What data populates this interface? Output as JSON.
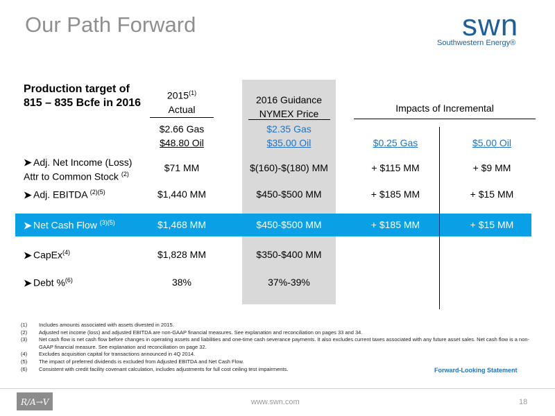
{
  "title": "Our Path Forward",
  "logo": {
    "word": "swn",
    "sub": "Southwestern Energy®"
  },
  "lead": "Production target of 815 – 835 Bcfe in 2016",
  "headers": {
    "actual_year": "2015",
    "actual_sup": "(1)",
    "actual_label": "Actual",
    "guidance_l1": "2016 Guidance",
    "guidance_l2": "NYMEX Price",
    "impacts": "Impacts of Incremental"
  },
  "prices": {
    "actual_gas": "$2.66 Gas",
    "actual_oil": "$48.80 Oil",
    "guidance_gas": "$2.35 Gas",
    "guidance_oil": "$35.00 Oil",
    "inc_gas": "$0.25 Gas",
    "inc_oil": "$5.00 Oil"
  },
  "rows": [
    {
      "label1": "Adj. Net Income (Loss)",
      "label2": "Attr to Common Stock",
      "sup": "(2)",
      "actual": "$71 MM",
      "guidance": "$(160)-$(180) MM",
      "gas": "+ $115 MM",
      "oil": "+ $9 MM"
    },
    {
      "label1": "Adj. EBITDA",
      "sup": "(2)(5)",
      "actual": "$1,440 MM",
      "guidance": "$450-$500 MM",
      "gas": "+ $185 MM",
      "oil": "+ $15 MM"
    },
    {
      "label1": "Net Cash Flow",
      "sup": "(3)(5)",
      "actual": "$1,468 MM",
      "guidance": "$450-$500 MM",
      "gas": "+ $185 MM",
      "oil": "+ $15 MM"
    },
    {
      "label1": "CapEx",
      "sup": "(4)",
      "actual": "$1,828 MM",
      "guidance": "$350-$400 MM",
      "gas": "",
      "oil": ""
    },
    {
      "label1": "Debt %",
      "sup": "(6)",
      "actual": "38%",
      "guidance": "37%-39%",
      "gas": "",
      "oil": ""
    }
  ],
  "footnotes": [
    {
      "n": "(1)",
      "text": "Includes amounts associated with assets divested in 2015."
    },
    {
      "n": "(2)",
      "text": "Adjusted net income (loss) and adjusted EBITDA are non-GAAP financial measures. See explanation and reconciliation on pages 33 and 34."
    },
    {
      "n": "(3)",
      "text": "Net cash flow is net cash flow before changes in operating assets and liabilities and one-time cash severance payments. It also excludes current taxes associated with any future asset sales. Net cash flow is a non-GAAP financial measure. See explanation and reconciliation on page 32."
    },
    {
      "n": "(4)",
      "text": "Excludes acquisition capital for transactions announced in 4Q 2014."
    },
    {
      "n": "(5)",
      "text": "The impact of preferred dividends is excluded from Adjusted EBITDA and Net Cash Flow."
    },
    {
      "n": "(6)",
      "text": "Consistent with credit facility covenant calculation, includes adjustments for full cost ceiling test impairments."
    }
  ],
  "forward_link": "Forward-Looking Statement",
  "footer": {
    "url": "www.swn.com",
    "page": "18"
  },
  "colors": {
    "highlight": "#0aa0e5",
    "gray": "#d9d9d9",
    "brand": "#1f5e9c",
    "link": "#1f73c4"
  }
}
